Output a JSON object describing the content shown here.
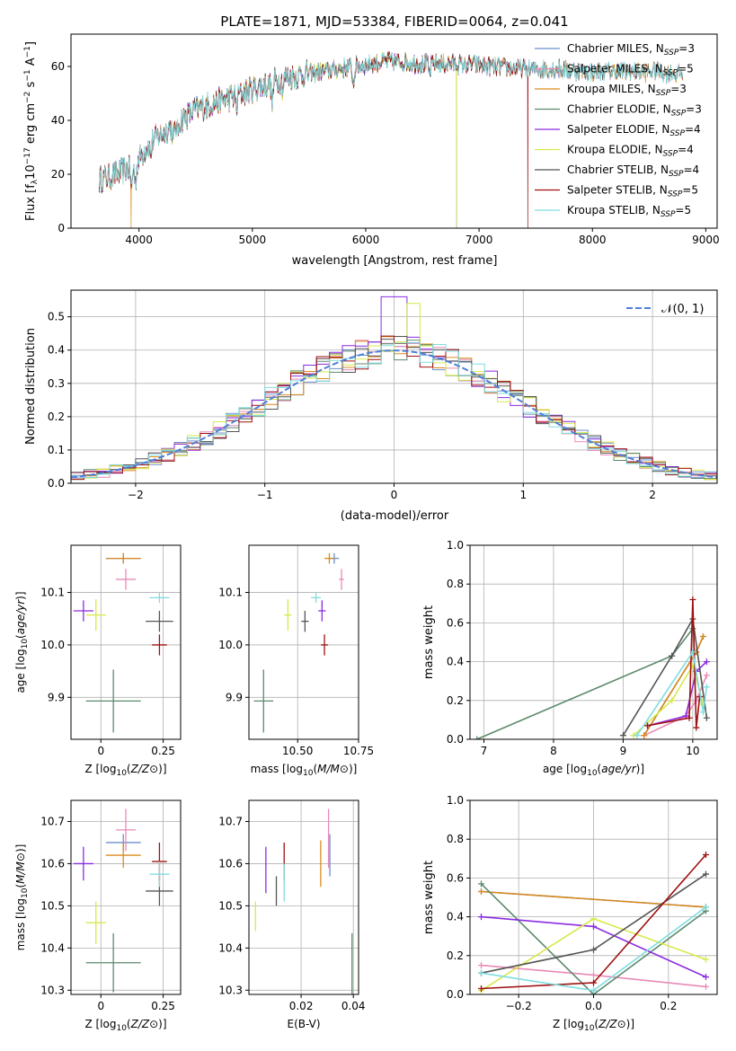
{
  "title": "PLATE=1871, MJD=53384, FIBERID=0064, z=0.041",
  "colors": {
    "Chabrier MILES": "#6e8fcc",
    "Salpeter MILES": "#e88ab8",
    "Kroupa MILES": "#d98a1c",
    "Chabrier ELODIE": "#5b8a6b",
    "Salpeter ELODIE": "#8a2be2",
    "Kroupa ELODIE": "#d8e84a",
    "Chabrier STELIB": "#555555",
    "Salpeter STELIB": "#a01010",
    "Kroupa STELIB": "#80dde0"
  },
  "chart_data": [
    {
      "type": "line",
      "id": "spectrum",
      "xlabel": "wavelength [Angstrom, rest frame]",
      "ylabel": "Flux [f",
      "ylabel_parts": [
        "Flux [f",
        "λ",
        "10",
        "−17",
        " erg cm",
        "−2",
        " s",
        "−1",
        " A",
        "−1",
        "]"
      ],
      "xlim": [
        3400,
        9100
      ],
      "ylim": [
        0,
        72
      ],
      "xticks": [
        4000,
        5000,
        6000,
        7000,
        8000,
        9000
      ],
      "yticks": [
        0,
        20,
        40,
        60
      ],
      "grid": false,
      "legend_position": "right",
      "continuum_x": [
        3650,
        3800,
        3950,
        4100,
        4300,
        4500,
        4700,
        4900,
        5100,
        5300,
        5600,
        5900,
        6200,
        6500,
        6800,
        7100,
        7400,
        7700,
        8000,
        8300,
        8600,
        8800
      ],
      "continuum_y": [
        18,
        20,
        23,
        32,
        38,
        44,
        47,
        50,
        53,
        56,
        58,
        60,
        62,
        61,
        61,
        60,
        59,
        59,
        58,
        58,
        58,
        57
      ],
      "dips": [
        {
          "series": "Kroupa MILES",
          "x": 3930,
          "y": 0
        },
        {
          "series": "Kroupa ELODIE",
          "x": 6800,
          "y": 0
        },
        {
          "series": "Salpeter STELIB",
          "x": 7430,
          "y": 0
        }
      ],
      "series": [
        {
          "name": "Chabrier MILES",
          "nssp": "3",
          "xmax": 8800
        },
        {
          "name": "Salpeter MILES",
          "nssp": "5",
          "xmax": 8800
        },
        {
          "name": "Kroupa MILES",
          "nssp": "3",
          "xmax": 8800
        },
        {
          "name": "Chabrier ELODIE",
          "nssp": "3",
          "xmax": 6800
        },
        {
          "name": "Salpeter ELODIE",
          "nssp": "4",
          "xmax": 6800
        },
        {
          "name": "Kroupa ELODIE",
          "nssp": "4",
          "xmax": 6800
        },
        {
          "name": "Chabrier STELIB",
          "nssp": "4",
          "xmax": 8800
        },
        {
          "name": "Salpeter STELIB",
          "nssp": "5",
          "xmax": 7430
        },
        {
          "name": "Kroupa STELIB",
          "nssp": "5",
          "xmax": 8800
        }
      ]
    },
    {
      "type": "step",
      "id": "residuals",
      "xlabel": "(data-model)/error",
      "ylabel": "Normed distribution",
      "xlim": [
        -2.5,
        2.5
      ],
      "ylim": [
        0,
        0.58
      ],
      "xticks": [
        -2,
        -1,
        0,
        1,
        2
      ],
      "yticks": [
        0.0,
        0.1,
        0.2,
        0.3,
        0.4,
        0.5
      ],
      "grid": true,
      "legend": "𝒩(0, 1)",
      "legend_position": "top-right",
      "bin_width": 0.1
    },
    {
      "type": "errorbar",
      "id": "age_vs_Z",
      "xlabel": "Z [log10(Z/Z⊙)]",
      "ylabel": "age  [log10(age/yr)]",
      "xlim": [
        -0.12,
        0.32
      ],
      "ylim": [
        9.82,
        10.19
      ],
      "xticks": [
        0.0,
        0.25
      ],
      "yticks": [
        9.9,
        10.0,
        10.1
      ],
      "grid": true,
      "points": [
        {
          "series": "Chabrier MILES",
          "x": 0.09,
          "y": 10.165,
          "xerr": 0.07,
          "yerr": 0.01
        },
        {
          "series": "Kroupa MILES",
          "x": 0.09,
          "y": 10.165,
          "xerr": 0.07,
          "yerr": 0.01
        },
        {
          "series": "Salpeter MILES",
          "x": 0.1,
          "y": 10.125,
          "xerr": 0.04,
          "yerr": 0.02
        },
        {
          "series": "Chabrier ELODIE",
          "x": 0.05,
          "y": 9.893,
          "xerr": 0.11,
          "yerr": 0.06
        },
        {
          "series": "Salpeter ELODIE",
          "x": -0.07,
          "y": 10.065,
          "xerr": 0.04,
          "yerr": 0.02
        },
        {
          "series": "Kroupa ELODIE",
          "x": -0.02,
          "y": 10.057,
          "xerr": 0.04,
          "yerr": 0.03
        },
        {
          "series": "Chabrier STELIB",
          "x": 0.235,
          "y": 10.045,
          "xerr": 0.055,
          "yerr": 0.02
        },
        {
          "series": "Salpeter STELIB",
          "x": 0.235,
          "y": 10.0,
          "xerr": 0.03,
          "yerr": 0.02
        },
        {
          "series": "Kroupa STELIB",
          "x": 0.235,
          "y": 10.09,
          "xerr": 0.04,
          "yerr": 0.01
        }
      ]
    },
    {
      "type": "errorbar",
      "id": "age_vs_mass",
      "xlabel": "mass [log10(M/M⊙)]",
      "ylabel": "",
      "xlim": [
        10.3,
        10.75
      ],
      "ylim": [
        9.82,
        10.19
      ],
      "xticks": [
        10.5,
        10.75
      ],
      "xticklabels": [
        "10.50",
        "10.75"
      ],
      "yticks": [
        9.9,
        10.0,
        10.1
      ],
      "grid": true,
      "points": [
        {
          "series": "Chabrier MILES",
          "x": 10.65,
          "y": 10.165,
          "xerr": 0.02,
          "yerr": 0.01
        },
        {
          "series": "Kroupa MILES",
          "x": 10.63,
          "y": 10.165,
          "xerr": 0.02,
          "yerr": 0.01
        },
        {
          "series": "Salpeter MILES",
          "x": 10.68,
          "y": 10.125,
          "xerr": 0.01,
          "yerr": 0.02
        },
        {
          "series": "Chabrier ELODIE",
          "x": 10.36,
          "y": 9.893,
          "xerr": 0.04,
          "yerr": 0.06
        },
        {
          "series": "Salpeter ELODIE",
          "x": 10.6,
          "y": 10.065,
          "xerr": 0.015,
          "yerr": 0.02
        },
        {
          "series": "Kroupa ELODIE",
          "x": 10.46,
          "y": 10.057,
          "xerr": 0.015,
          "yerr": 0.03
        },
        {
          "series": "Chabrier STELIB",
          "x": 10.53,
          "y": 10.045,
          "xerr": 0.015,
          "yerr": 0.02
        },
        {
          "series": "Salpeter STELIB",
          "x": 10.61,
          "y": 10.0,
          "xerr": 0.015,
          "yerr": 0.02
        },
        {
          "series": "Kroupa STELIB",
          "x": 10.575,
          "y": 10.09,
          "xerr": 0.02,
          "yerr": 0.01
        }
      ]
    },
    {
      "type": "step_line",
      "id": "massweight_vs_age",
      "xlabel": "age  [log10(age/yr)]",
      "ylabel": "mass weight",
      "xlim": [
        6.8,
        10.35
      ],
      "ylim": [
        0,
        1
      ],
      "xticks": [
        7,
        8,
        9,
        10
      ],
      "yticks": [
        0.0,
        0.2,
        0.4,
        0.6,
        0.8,
        1.0
      ],
      "grid": true,
      "series": [
        {
          "name": "Chabrier MILES",
          "x": [
            9.3,
            10.05,
            10.15
          ],
          "y": [
            0.02,
            0.45,
            0.53
          ]
        },
        {
          "name": "Salpeter MILES",
          "x": [
            9.3,
            9.9,
            10.05,
            10.2
          ],
          "y": [
            0.02,
            0.12,
            0.2,
            0.33
          ]
        },
        {
          "name": "Kroupa MILES",
          "x": [
            9.3,
            10.05,
            10.15
          ],
          "y": [
            0.02,
            0.45,
            0.53
          ]
        },
        {
          "name": "Chabrier ELODIE",
          "x": [
            6.9,
            9.7,
            10.0
          ],
          "y": [
            0.0,
            0.43,
            0.57
          ]
        },
        {
          "name": "Salpeter ELODIE",
          "x": [
            9.35,
            9.9,
            10.05,
            10.2
          ],
          "y": [
            0.07,
            0.12,
            0.35,
            0.4
          ]
        },
        {
          "name": "Kroupa ELODIE",
          "x": [
            9.15,
            9.7,
            10.0,
            10.15
          ],
          "y": [
            0.02,
            0.2,
            0.38,
            0.18
          ]
        },
        {
          "name": "Chabrier STELIB",
          "x": [
            9.0,
            9.7,
            10.0,
            10.2
          ],
          "y": [
            0.02,
            0.43,
            0.62,
            0.11
          ]
        },
        {
          "name": "Salpeter STELIB",
          "x": [
            9.35,
            9.95,
            10.0,
            10.05,
            10.1
          ],
          "y": [
            0.07,
            0.11,
            0.72,
            0.06,
            0.22
          ]
        },
        {
          "name": "Kroupa STELIB",
          "x": [
            9.2,
            10.0,
            10.15,
            10.2
          ],
          "y": [
            0.02,
            0.45,
            0.14,
            0.27
          ]
        }
      ]
    },
    {
      "type": "errorbar",
      "id": "mass_vs_Z",
      "xlabel": "Z [log10(Z/Z⊙)]",
      "ylabel": "mass [log10(M/M⊙)]",
      "xlim": [
        -0.12,
        0.32
      ],
      "ylim": [
        10.29,
        10.75
      ],
      "xticks": [
        0.0,
        0.25
      ],
      "yticks": [
        10.3,
        10.4,
        10.5,
        10.6,
        10.7
      ],
      "grid": true,
      "points": [
        {
          "series": "Chabrier MILES",
          "x": 0.09,
          "y": 10.65,
          "xerr": 0.07,
          "yerr": 0.02
        },
        {
          "series": "Kroupa MILES",
          "x": 0.09,
          "y": 10.62,
          "xerr": 0.07,
          "yerr": 0.03
        },
        {
          "series": "Salpeter MILES",
          "x": 0.1,
          "y": 10.68,
          "xerr": 0.04,
          "yerr": 0.05
        },
        {
          "series": "Chabrier ELODIE",
          "x": 0.05,
          "y": 10.365,
          "xerr": 0.11,
          "yerr": 0.07
        },
        {
          "series": "Salpeter ELODIE",
          "x": -0.07,
          "y": 10.6,
          "xerr": 0.04,
          "yerr": 0.04
        },
        {
          "series": "Kroupa ELODIE",
          "x": -0.02,
          "y": 10.46,
          "xerr": 0.04,
          "yerr": 0.05
        },
        {
          "series": "Chabrier STELIB",
          "x": 0.235,
          "y": 10.535,
          "xerr": 0.055,
          "yerr": 0.035
        },
        {
          "series": "Salpeter STELIB",
          "x": 0.235,
          "y": 10.605,
          "xerr": 0.03,
          "yerr": 0.045
        },
        {
          "series": "Kroupa STELIB",
          "x": 0.235,
          "y": 10.575,
          "xerr": 0.04,
          "yerr": 0.03
        }
      ]
    },
    {
      "type": "errorbar",
      "id": "mass_vs_EBV",
      "xlabel": "E(B-V)",
      "ylabel": "",
      "xlim": [
        0.0,
        0.042
      ],
      "ylim": [
        10.29,
        10.75
      ],
      "xticks": [
        0.02,
        0.04
      ],
      "xticklabels": [
        "0.02",
        "0.04"
      ],
      "yticks": [
        10.3,
        10.4,
        10.5,
        10.6,
        10.7
      ],
      "grid": true,
      "points": [
        {
          "series": "Chabrier MILES",
          "x": 0.031,
          "y": 10.62,
          "xerr": 0,
          "yerr": 0.05
        },
        {
          "series": "Kroupa MILES",
          "x": 0.0275,
          "y": 10.6,
          "xerr": 0,
          "yerr": 0.055
        },
        {
          "series": "Salpeter MILES",
          "x": 0.0305,
          "y": 10.66,
          "xerr": 0,
          "yerr": 0.07
        },
        {
          "series": "Chabrier ELODIE",
          "x": 0.0395,
          "y": 10.35,
          "xerr": 0,
          "yerr": 0.085
        },
        {
          "series": "Salpeter ELODIE",
          "x": 0.0065,
          "y": 10.585,
          "xerr": 0,
          "yerr": 0.055
        },
        {
          "series": "Kroupa ELODIE",
          "x": 0.0025,
          "y": 10.475,
          "xerr": 0,
          "yerr": 0.035
        },
        {
          "series": "Chabrier STELIB",
          "x": 0.0105,
          "y": 10.535,
          "xerr": 0,
          "yerr": 0.035
        },
        {
          "series": "Salpeter STELIB",
          "x": 0.0135,
          "y": 10.605,
          "xerr": 0,
          "yerr": 0.045
        },
        {
          "series": "Kroupa STELIB",
          "x": 0.0135,
          "y": 10.555,
          "xerr": 0,
          "yerr": 0.045
        }
      ]
    },
    {
      "type": "step_line",
      "id": "massweight_vs_Z",
      "xlabel": "Z [log10(Z/Z⊙)]",
      "ylabel": "mass weight",
      "xlim": [
        -0.33,
        0.33
      ],
      "ylim": [
        0,
        1
      ],
      "xticks": [
        -0.2,
        0.0,
        0.2
      ],
      "xticklabels": [
        "−0.2",
        "0.0",
        "0.2"
      ],
      "yticks": [
        0.0,
        0.2,
        0.4,
        0.6,
        0.8,
        1.0
      ],
      "grid": true,
      "series": [
        {
          "name": "Chabrier MILES",
          "x": [
            -0.3,
            0.3
          ],
          "y": [
            0.53,
            0.45
          ]
        },
        {
          "name": "Salpeter MILES",
          "x": [
            -0.3,
            0.0,
            0.3
          ],
          "y": [
            0.15,
            0.1,
            0.04
          ]
        },
        {
          "name": "Kroupa MILES",
          "x": [
            -0.3,
            0.3
          ],
          "y": [
            0.53,
            0.45
          ]
        },
        {
          "name": "Chabrier ELODIE",
          "x": [
            -0.3,
            0.0,
            0.3
          ],
          "y": [
            0.57,
            0.0,
            0.43
          ]
        },
        {
          "name": "Salpeter ELODIE",
          "x": [
            -0.3,
            0.0,
            0.3
          ],
          "y": [
            0.4,
            0.35,
            0.09
          ]
        },
        {
          "name": "Kroupa ELODIE",
          "x": [
            -0.3,
            0.0,
            0.3
          ],
          "y": [
            0.02,
            0.39,
            0.18
          ]
        },
        {
          "name": "Chabrier STELIB",
          "x": [
            -0.3,
            0.0,
            0.3
          ],
          "y": [
            0.11,
            0.23,
            0.62
          ]
        },
        {
          "name": "Salpeter STELIB",
          "x": [
            -0.3,
            0.0,
            0.3
          ],
          "y": [
            0.03,
            0.06,
            0.72
          ]
        },
        {
          "name": "Kroupa STELIB",
          "x": [
            -0.3,
            0.0,
            0.3
          ],
          "y": [
            0.11,
            0.02,
            0.45
          ]
        }
      ]
    }
  ]
}
